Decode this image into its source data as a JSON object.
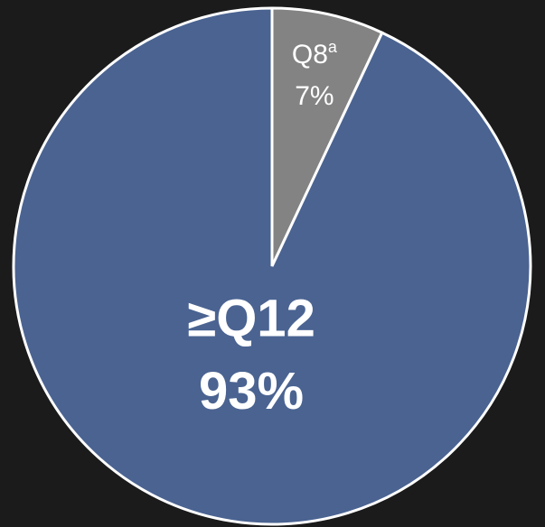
{
  "chart_data": {
    "type": "pie",
    "categories": [
      "Q8",
      "≥Q12"
    ],
    "category_superscripts": [
      "a",
      null
    ],
    "values": [
      7,
      93
    ],
    "value_labels": [
      "7%",
      "93%"
    ],
    "colors": [
      "#838383",
      "#4a6391"
    ]
  }
}
